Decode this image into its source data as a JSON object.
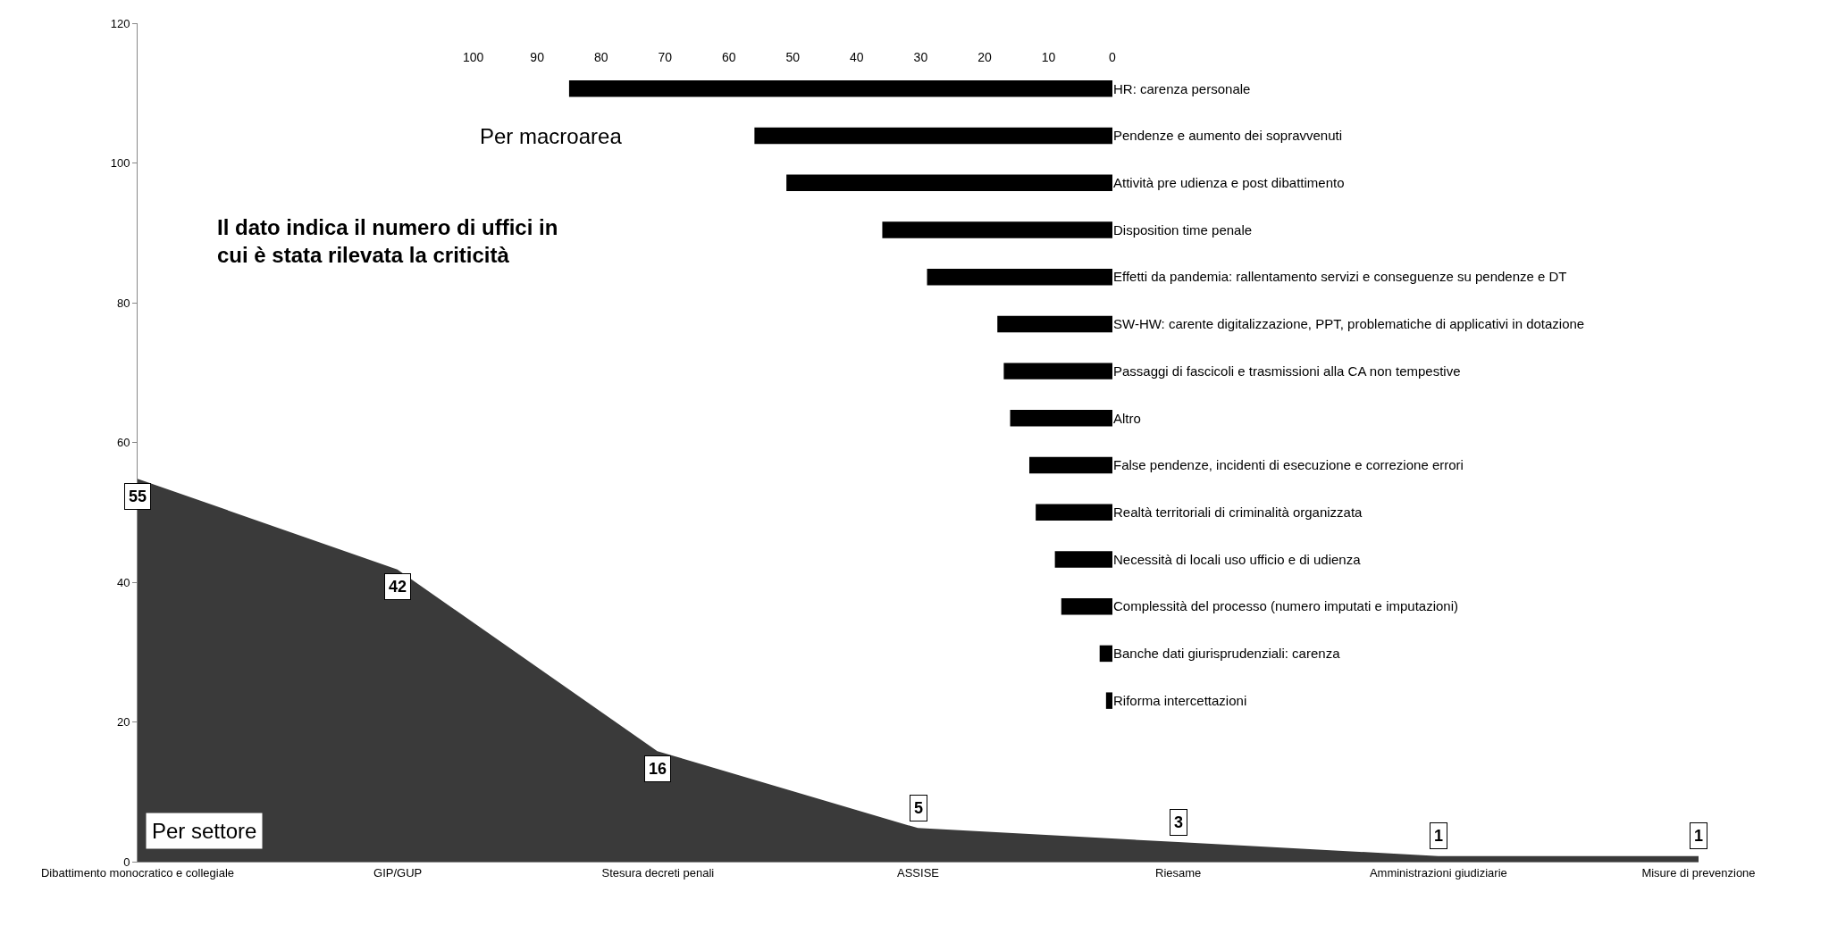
{
  "chart_data": [
    {
      "type": "area",
      "title": "Per settore",
      "categories": [
        "Dibattimento monocratico e collegiale",
        "GIP/GUP",
        "Stesura decreti penali",
        "ASSISE",
        "Riesame",
        "Amministrazioni giudiziarie",
        "Misure di prevenzione"
      ],
      "values": [
        55,
        42,
        16,
        5,
        3,
        1,
        1
      ],
      "color": "#3a3a3a",
      "ylim": [
        0,
        120
      ],
      "yticks": [
        0,
        20,
        40,
        60,
        80,
        100,
        120
      ],
      "data_labels": true,
      "annotations": [
        "Il dato indica il numero di uffici in cui è stata rilevata la criticità"
      ]
    },
    {
      "type": "bar",
      "orientation": "horizontal",
      "title": "Per macroarea",
      "categories": [
        "HR: carenza personale",
        "Pendenze e aumento dei sopravvenuti",
        "Attività pre udienza e post dibattimento",
        "Disposition time penale",
        "Effetti da pandemia: rallentamento servizi e conseguenze su pendenze e DT",
        "SW-HW: carente digitalizzazione, PPT, problematiche di applicativi in dotazione",
        "Passaggi di fascicoli e trasmissioni alla CA non tempestive",
        "Altro",
        "False pendenze, incidenti di esecuzione e correzione errori",
        "Realtà territoriali di criminalità organizzata",
        "Necessità di locali uso ufficio e di udienza",
        "Complessità del processo (numero imputati e imputazioni)",
        "Banche dati giurisprudenziali: carenza",
        "Riforma intercettazioni"
      ],
      "values": [
        85,
        56,
        51,
        36,
        29,
        18,
        17,
        16,
        13,
        12,
        9,
        8,
        2,
        1
      ],
      "color": "#000000",
      "xlim": [
        100,
        0
      ],
      "xticks": [
        100,
        90,
        80,
        70,
        60,
        50,
        40,
        30,
        20,
        10,
        0
      ]
    }
  ]
}
